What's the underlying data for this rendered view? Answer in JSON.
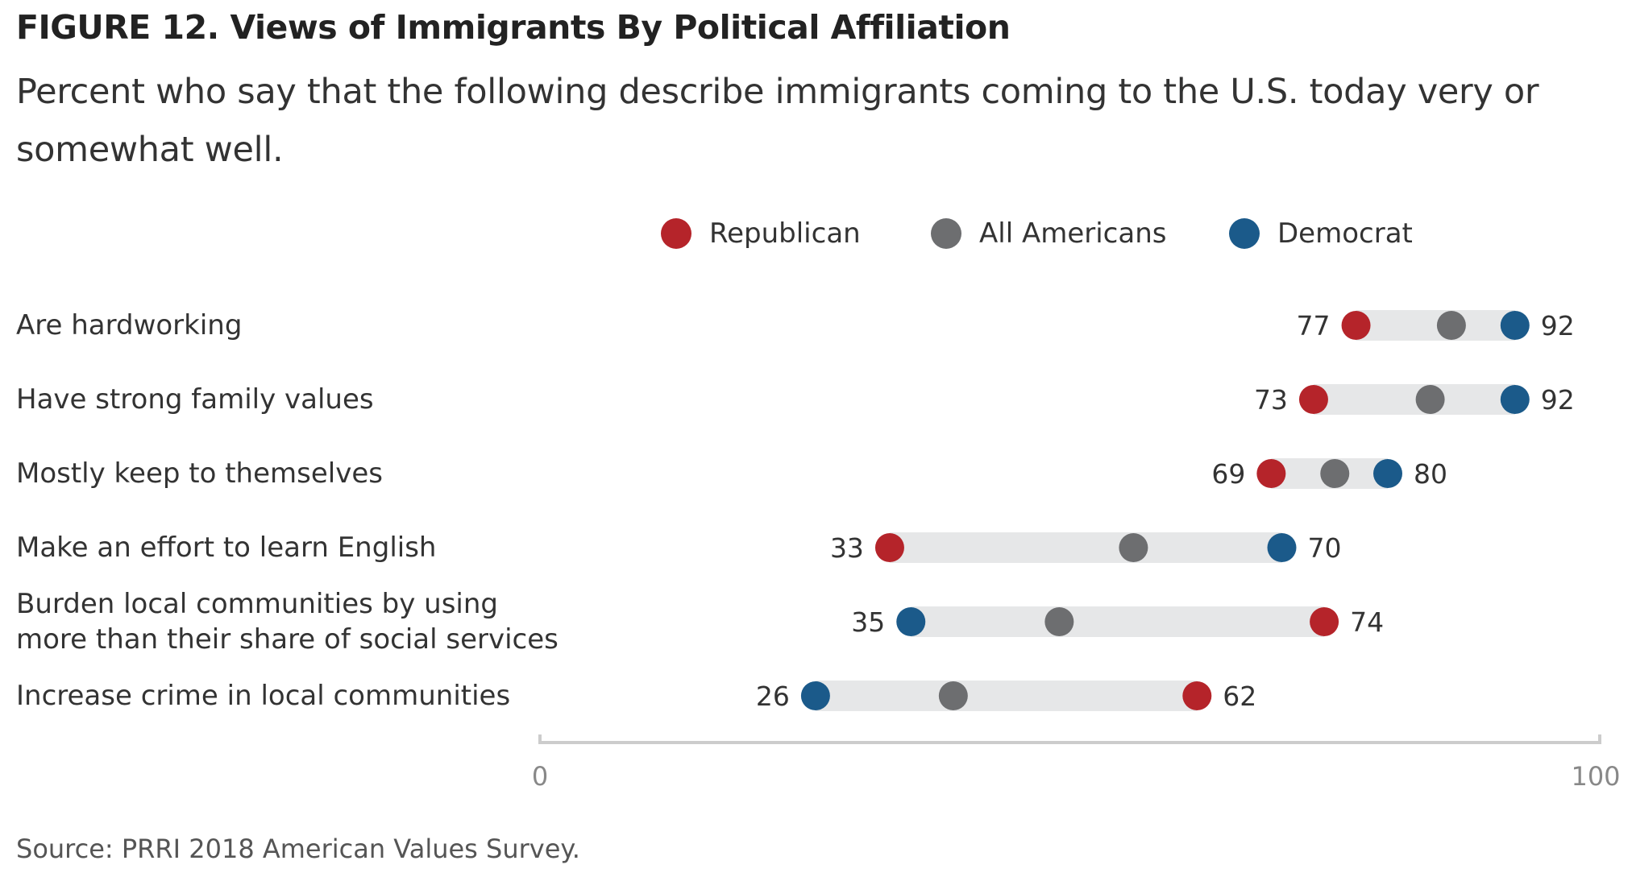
{
  "title": "FIGURE 12.  Views of Immigrants By Political Affiliation",
  "subtitle": "Percent who say that the following describe immigrants coming to the U.S. today very or somewhat well.",
  "source": "Source: PRRI 2018 American Values Survey.",
  "legend": [
    {
      "name": "Republican",
      "color": "#B5242A"
    },
    {
      "name": "All Americans",
      "color": "#6D6E70"
    },
    {
      "name": "Democrat",
      "color": "#1B5A8A"
    }
  ],
  "colors": {
    "republican": "#B5242A",
    "all_americans": "#6D6E70",
    "democrat": "#1B5A8A",
    "range_bar": "#E6E7E8",
    "axis": "#CCCCCC"
  },
  "chart_data": {
    "type": "dot-range",
    "xlim": [
      0,
      100
    ],
    "x_ticks": [
      "0",
      "100"
    ],
    "categories": [
      [
        "Are hardworking"
      ],
      [
        "Have strong family values"
      ],
      [
        "Mostly keep to themselves"
      ],
      [
        "Make an effort to learn English"
      ],
      [
        "Burden local communities by using",
        "more than their share of social services"
      ],
      [
        "Increase crime in local communities"
      ]
    ],
    "series": [
      {
        "name": "Republican",
        "values": [
          77,
          73,
          69,
          33,
          74,
          62
        ]
      },
      {
        "name": "All Americans",
        "values": [
          86,
          84,
          75,
          56,
          49,
          39
        ]
      },
      {
        "name": "Democrat",
        "values": [
          92,
          92,
          80,
          70,
          35,
          26
        ]
      }
    ],
    "low_labels": [
      "77",
      "73",
      "69",
      "33",
      "35",
      "26"
    ],
    "high_labels": [
      "92",
      "92",
      "80",
      "70",
      "74",
      "62"
    ]
  }
}
